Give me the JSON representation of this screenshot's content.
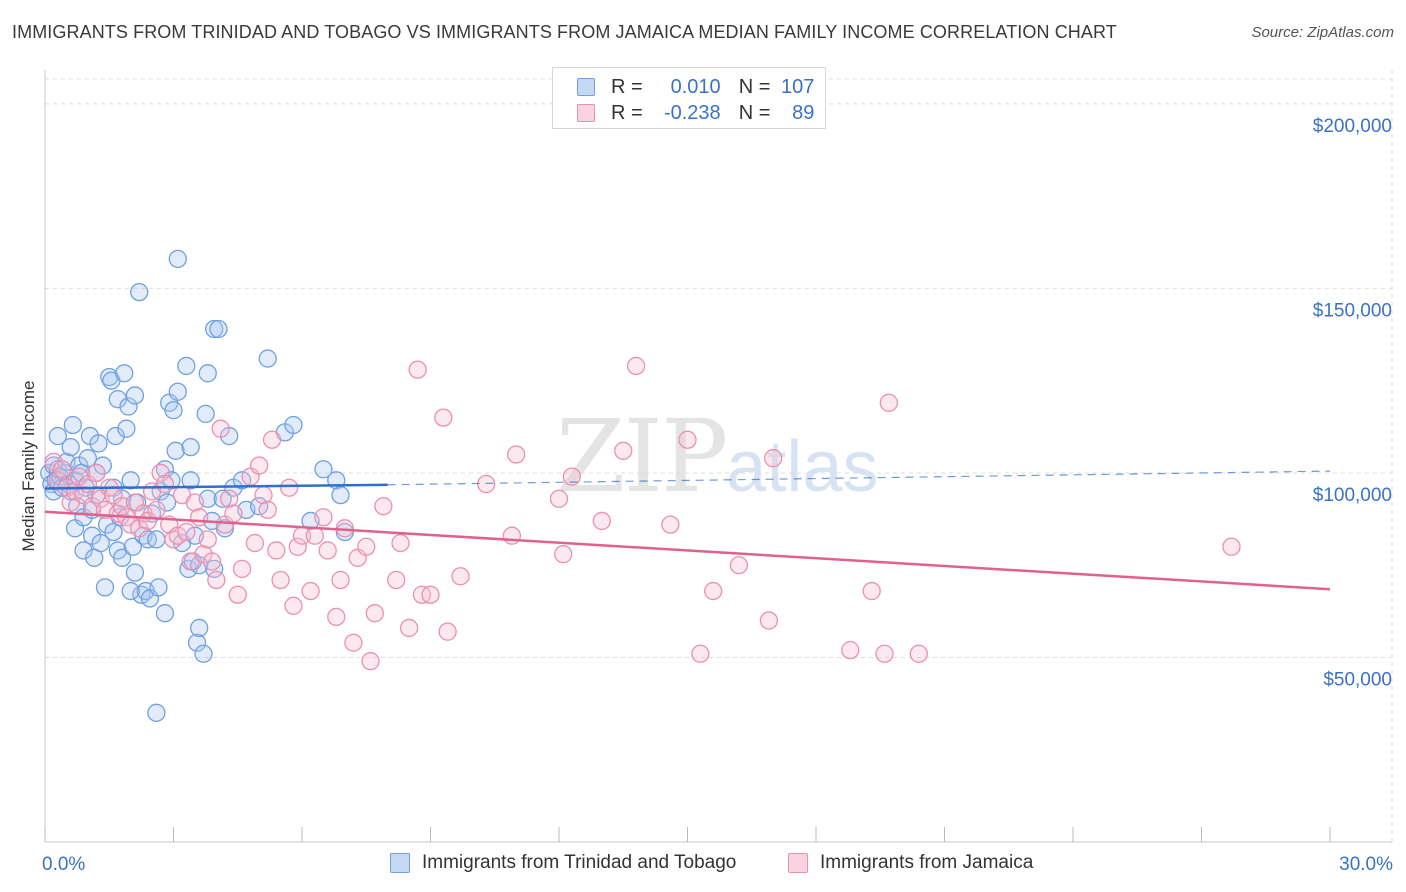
{
  "header": {
    "title": "IMMIGRANTS FROM TRINIDAD AND TOBAGO VS IMMIGRANTS FROM JAMAICA MEDIAN FAMILY INCOME CORRELATION CHART",
    "source": "Source: ZipAtlas.com"
  },
  "watermark": {
    "zip": "ZIP",
    "atlas": "atlas"
  },
  "legend": {
    "rows": [
      {
        "r_label": "R =",
        "r_value": "0.010",
        "n_label": "N =",
        "n_value": "107"
      },
      {
        "r_label": "R =",
        "r_value": "-0.238",
        "n_label": "N =",
        "n_value": "89"
      }
    ]
  },
  "colors": {
    "blue": "#6fa0e0",
    "blue_fill": "#a9c7f0",
    "blue_line": "#2f6fd0",
    "pink": "#ea8fb0",
    "pink_fill": "#f6c0d2",
    "pink_line": "#e0608e",
    "grid": "#dcdcdc",
    "tick_text": "#3a72c4"
  },
  "chart_data": {
    "type": "scatter",
    "title": "IMMIGRANTS FROM TRINIDAD AND TOBAGO VS IMMIGRANTS FROM JAMAICA MEDIAN FAMILY INCOME CORRELATION CHART",
    "xlabel": "",
    "ylabel": "Median Family Income",
    "xlim": [
      0,
      30
    ],
    "ylim": [
      0,
      210000
    ],
    "x_tick_labels": [
      "0.0%",
      "30.0%"
    ],
    "y_ticks": [
      50000,
      100000,
      150000,
      200000
    ],
    "y_tick_labels": [
      "$50,000",
      "$100,000",
      "$150,000",
      "$200,000"
    ],
    "grid": true,
    "legend_position": "top-center",
    "series": [
      {
        "name": "Immigrants from Trinidad and Tobago",
        "r": 0.01,
        "n": 107,
        "trend": {
          "x": [
            0,
            8
          ],
          "y": [
            95800,
            96800
          ],
          "dashed_to": [
            30,
            100500
          ]
        },
        "points": [
          [
            0.1,
            100000
          ],
          [
            0.15,
            97000
          ],
          [
            0.2,
            102000
          ],
          [
            0.2,
            95000
          ],
          [
            0.25,
            98000
          ],
          [
            0.3,
            110000
          ],
          [
            0.3,
            101000
          ],
          [
            0.35,
            99000
          ],
          [
            0.4,
            96000
          ],
          [
            0.45,
            100000
          ],
          [
            0.5,
            103000
          ],
          [
            0.55,
            97000
          ],
          [
            0.6,
            107000
          ],
          [
            0.6,
            95000
          ],
          [
            0.65,
            113000
          ],
          [
            0.7,
            98000
          ],
          [
            0.7,
            85000
          ],
          [
            0.75,
            91000
          ],
          [
            0.8,
            102000
          ],
          [
            0.85,
            100000
          ],
          [
            0.9,
            88000
          ],
          [
            0.9,
            79000
          ],
          [
            0.95,
            96000
          ],
          [
            1.0,
            104000
          ],
          [
            1.05,
            110000
          ],
          [
            1.1,
            90000
          ],
          [
            1.1,
            83000
          ],
          [
            1.15,
            77000
          ],
          [
            1.2,
            100000
          ],
          [
            1.2,
            94000
          ],
          [
            1.25,
            108000
          ],
          [
            1.3,
            81000
          ],
          [
            1.35,
            102000
          ],
          [
            1.4,
            69000
          ],
          [
            1.45,
            86000
          ],
          [
            1.5,
            126000
          ],
          [
            1.55,
            125000
          ],
          [
            1.6,
            96000
          ],
          [
            1.6,
            84000
          ],
          [
            1.65,
            110000
          ],
          [
            1.7,
            120000
          ],
          [
            1.7,
            79000
          ],
          [
            1.75,
            88000
          ],
          [
            1.8,
            93000
          ],
          [
            1.8,
            77000
          ],
          [
            1.85,
            127000
          ],
          [
            1.9,
            112000
          ],
          [
            1.95,
            118000
          ],
          [
            2.0,
            98000
          ],
          [
            2.05,
            80000
          ],
          [
            2.1,
            121000
          ],
          [
            2.1,
            73000
          ],
          [
            2.15,
            92000
          ],
          [
            2.2,
            149000
          ],
          [
            2.25,
            67000
          ],
          [
            2.3,
            83000
          ],
          [
            2.35,
            68000
          ],
          [
            2.4,
            82000
          ],
          [
            2.45,
            66000
          ],
          [
            2.5,
            89000
          ],
          [
            2.6,
            82000
          ],
          [
            2.6,
            35000
          ],
          [
            2.65,
            69000
          ],
          [
            2.7,
            95000
          ],
          [
            2.8,
            62000
          ],
          [
            2.8,
            101000
          ],
          [
            2.85,
            92000
          ],
          [
            2.9,
            119000
          ],
          [
            2.95,
            98000
          ],
          [
            3.0,
            117000
          ],
          [
            3.05,
            106000
          ],
          [
            3.1,
            122000
          ],
          [
            3.1,
            158000
          ],
          [
            3.2,
            81000
          ],
          [
            3.3,
            129000
          ],
          [
            3.35,
            74000
          ],
          [
            3.4,
            107000
          ],
          [
            3.4,
            98000
          ],
          [
            3.45,
            76000
          ],
          [
            3.5,
            83000
          ],
          [
            3.55,
            54000
          ],
          [
            3.6,
            58000
          ],
          [
            3.6,
            75000
          ],
          [
            3.7,
            51000
          ],
          [
            3.75,
            116000
          ],
          [
            3.8,
            127000
          ],
          [
            3.8,
            93000
          ],
          [
            3.9,
            87000
          ],
          [
            3.95,
            74000
          ],
          [
            3.95,
            139000
          ],
          [
            4.05,
            139000
          ],
          [
            4.15,
            93000
          ],
          [
            4.2,
            85000
          ],
          [
            4.3,
            110000
          ],
          [
            4.4,
            96000
          ],
          [
            4.6,
            98000
          ],
          [
            4.7,
            90000
          ],
          [
            5.0,
            91000
          ],
          [
            5.2,
            131000
          ],
          [
            5.6,
            111000
          ],
          [
            5.8,
            113000
          ],
          [
            6.2,
            87000
          ],
          [
            6.8,
            98000
          ],
          [
            7.0,
            84000
          ],
          [
            6.5,
            101000
          ],
          [
            6.9,
            94000
          ],
          [
            2.0,
            68000
          ]
        ]
      },
      {
        "name": "Immigrants from Jamaica",
        "r": -0.238,
        "n": 89,
        "trend": {
          "x": [
            0,
            30
          ],
          "y": [
            89500,
            68500
          ]
        },
        "points": [
          [
            0.2,
            103000
          ],
          [
            0.3,
            98000
          ],
          [
            0.4,
            101000
          ],
          [
            0.5,
            96000
          ],
          [
            0.6,
            92000
          ],
          [
            0.7,
            95000
          ],
          [
            0.8,
            99000
          ],
          [
            0.9,
            94000
          ],
          [
            1.0,
            97000
          ],
          [
            1.1,
            91000
          ],
          [
            1.2,
            100000
          ],
          [
            1.3,
            93000
          ],
          [
            1.4,
            90000
          ],
          [
            1.5,
            96000
          ],
          [
            1.6,
            94000
          ],
          [
            1.7,
            89000
          ],
          [
            1.8,
            91000
          ],
          [
            1.9,
            88000
          ],
          [
            2.0,
            86000
          ],
          [
            2.1,
            92000
          ],
          [
            2.2,
            85000
          ],
          [
            2.3,
            89000
          ],
          [
            2.4,
            87000
          ],
          [
            2.5,
            95000
          ],
          [
            2.6,
            90000
          ],
          [
            2.7,
            100000
          ],
          [
            2.8,
            97000
          ],
          [
            2.9,
            86000
          ],
          [
            3.0,
            82000
          ],
          [
            3.1,
            83000
          ],
          [
            3.2,
            94000
          ],
          [
            3.3,
            84000
          ],
          [
            3.4,
            76000
          ],
          [
            3.5,
            92000
          ],
          [
            3.6,
            88000
          ],
          [
            3.7,
            78000
          ],
          [
            3.8,
            82000
          ],
          [
            3.9,
            76000
          ],
          [
            4.0,
            71000
          ],
          [
            4.1,
            112000
          ],
          [
            4.2,
            86000
          ],
          [
            4.3,
            93000
          ],
          [
            4.4,
            89000
          ],
          [
            4.5,
            67000
          ],
          [
            4.6,
            74000
          ],
          [
            4.8,
            99000
          ],
          [
            4.9,
            81000
          ],
          [
            5.0,
            102000
          ],
          [
            5.1,
            94000
          ],
          [
            5.2,
            90000
          ],
          [
            5.3,
            109000
          ],
          [
            5.4,
            79000
          ],
          [
            5.5,
            71000
          ],
          [
            5.7,
            96000
          ],
          [
            5.8,
            64000
          ],
          [
            5.9,
            80000
          ],
          [
            6.0,
            83000
          ],
          [
            6.2,
            68000
          ],
          [
            6.3,
            83000
          ],
          [
            6.5,
            88000
          ],
          [
            6.6,
            79000
          ],
          [
            6.8,
            61000
          ],
          [
            6.9,
            71000
          ],
          [
            7.0,
            85000
          ],
          [
            7.2,
            54000
          ],
          [
            7.3,
            77000
          ],
          [
            7.5,
            80000
          ],
          [
            7.6,
            49000
          ],
          [
            7.7,
            62000
          ],
          [
            7.9,
            91000
          ],
          [
            8.2,
            71000
          ],
          [
            8.3,
            81000
          ],
          [
            8.5,
            58000
          ],
          [
            8.7,
            128000
          ],
          [
            8.8,
            67000
          ],
          [
            9.0,
            67000
          ],
          [
            9.3,
            115000
          ],
          [
            9.4,
            57000
          ],
          [
            9.7,
            72000
          ],
          [
            10.3,
            97000
          ],
          [
            10.9,
            83000
          ],
          [
            11.0,
            105000
          ],
          [
            12.0,
            93000
          ],
          [
            12.1,
            78000
          ],
          [
            12.3,
            99000
          ],
          [
            13.0,
            87000
          ],
          [
            13.5,
            106000
          ],
          [
            13.8,
            129000
          ],
          [
            14.6,
            86000
          ]
        ],
        "extra_points": [
          [
            15.0,
            109000
          ],
          [
            15.3,
            51000
          ],
          [
            15.6,
            68000
          ],
          [
            16.2,
            75000
          ],
          [
            16.9,
            60000
          ],
          [
            17.0,
            104000
          ],
          [
            18.8,
            52000
          ],
          [
            19.3,
            68000
          ],
          [
            19.6,
            51000
          ],
          [
            19.7,
            119000
          ],
          [
            20.4,
            51000
          ],
          [
            27.7,
            80000
          ]
        ]
      }
    ]
  },
  "bottom_legend": {
    "items": [
      {
        "label": "Immigrants from Trinidad and Tobago"
      },
      {
        "label": "Immigrants from Jamaica"
      }
    ]
  }
}
